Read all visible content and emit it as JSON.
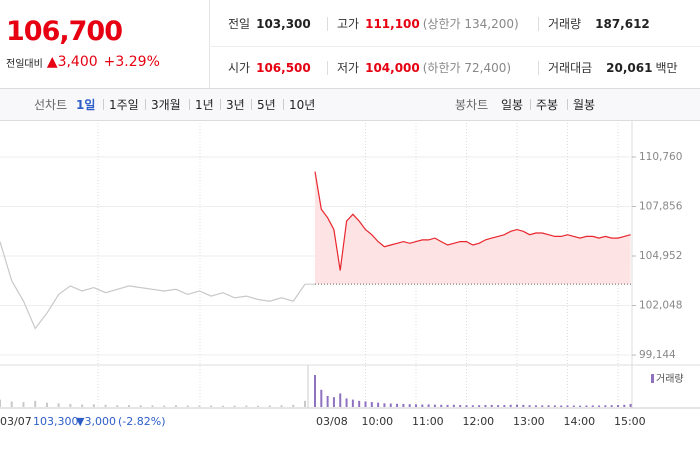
{
  "quote": {
    "price": "106,700",
    "change_label": "전일대비",
    "change": "▲3,400",
    "change_pct": "+3.29%"
  },
  "stats": [
    [
      {
        "label": "전일",
        "value": "103,300"
      },
      {
        "label": "고가",
        "value": "111,100",
        "note": "(상한가 134,200)"
      },
      {
        "label": "거래량",
        "value": "187,612"
      }
    ],
    [
      {
        "label": "시가",
        "value": "106,500"
      },
      {
        "label": "저가",
        "value": "104,000",
        "note": "(하한가 72,400)"
      },
      {
        "label": "거래대금",
        "value": "20,061",
        "unit": "백만"
      }
    ]
  ],
  "tabs": {
    "line_label": "선차트",
    "line_periods": [
      "1일",
      "1주일",
      "3개월",
      "1년",
      "3년",
      "5년",
      "10년"
    ],
    "selected": 0,
    "candle_label": "봉차트",
    "candle_periods": [
      "일봉",
      "주봉",
      "월봉"
    ]
  },
  "footer": {
    "prior_date": "03/07",
    "prior_close": "103,300",
    "prior_change": "▼3,000",
    "prior_pct": "(-2.82%)",
    "date": "03/08"
  },
  "chart_data": [
    {
      "type": "line",
      "ylim": [
        98560,
        112460
      ],
      "yticks": [
        {
          "value": 110760,
          "label": "110,760"
        },
        {
          "value": 107856,
          "label": "107,856"
        },
        {
          "value": 104952,
          "label": "104,952"
        },
        {
          "value": 102048,
          "label": "102,048"
        },
        {
          "value": 99144,
          "label": "99,144"
        }
      ],
      "xlim": [
        9,
        15.5
      ],
      "xticks": [
        {
          "value": 10,
          "label": "10:00"
        },
        {
          "value": 11,
          "label": "11:00"
        },
        {
          "value": 12,
          "label": "12:00"
        },
        {
          "value": 13,
          "label": "13:00"
        },
        {
          "value": 14,
          "label": "14:00"
        },
        {
          "value": 15,
          "label": "15:00"
        }
      ],
      "baseline": 103300,
      "grid": true,
      "series": [
        {
          "color": "#c8c8c8",
          "x": [
            9,
            9.25,
            9.5,
            9.75,
            10,
            10.25,
            10.5,
            10.75,
            11,
            11.25,
            11.5,
            11.75,
            12,
            12.25,
            12.5,
            12.75,
            13,
            13.25,
            13.5,
            13.75,
            14,
            14.25,
            14.5,
            14.75,
            15,
            15.25,
            15.5
          ],
          "values": [
            105800,
            103500,
            102300,
            100700,
            101600,
            102700,
            103200,
            102900,
            103100,
            102800,
            103000,
            103200,
            103100,
            103000,
            102900,
            103000,
            102700,
            102900,
            102600,
            102800,
            102500,
            102600,
            102400,
            102300,
            102500,
            102300,
            103300
          ]
        },
        {
          "color": "#e8262d",
          "fill": "#fde3e3",
          "x": [
            9,
            9.125,
            9.25,
            9.375,
            9.5,
            9.625,
            9.75,
            9.875,
            10,
            10.125,
            10.25,
            10.375,
            10.5,
            10.625,
            10.75,
            10.875,
            11,
            11.125,
            11.25,
            11.375,
            11.5,
            11.625,
            11.75,
            11.875,
            12,
            12.125,
            12.25,
            12.375,
            12.5,
            12.625,
            12.75,
            12.875,
            13,
            13.125,
            13.25,
            13.375,
            13.5,
            13.625,
            13.75,
            13.875,
            14,
            14.125,
            14.25,
            14.375,
            14.5,
            14.625,
            14.75,
            14.875,
            15,
            15.125,
            15.25
          ],
          "values": [
            109900,
            107700,
            107200,
            106500,
            104100,
            107000,
            107400,
            107000,
            106500,
            106200,
            105800,
            105500,
            105600,
            105700,
            105800,
            105700,
            105800,
            105900,
            105900,
            106000,
            105800,
            105600,
            105700,
            105800,
            105800,
            105600,
            105700,
            105900,
            106000,
            106100,
            106200,
            106400,
            106500,
            106400,
            106200,
            106300,
            106300,
            106200,
            106100,
            106100,
            106200,
            106100,
            106000,
            106100,
            106100,
            106000,
            106100,
            106000,
            106000,
            106100,
            106200
          ]
        }
      ]
    },
    {
      "type": "bar",
      "xlim": [
        9,
        15.5
      ],
      "series": [
        {
          "color": "#c8c8c8",
          "x": [
            9,
            9.25,
            9.5,
            9.75,
            10,
            10.25,
            10.5,
            10.75,
            11,
            11.25,
            11.5,
            11.75,
            12,
            12.25,
            12.5,
            12.75,
            13,
            13.25,
            13.5,
            13.75,
            14,
            14.25,
            14.5,
            14.75,
            15,
            15.25,
            15.5
          ],
          "values": [
            6000,
            4500,
            4000,
            5000,
            3500,
            3000,
            2500,
            2000,
            2200,
            1800,
            1500,
            1600,
            1400,
            1300,
            1200,
            1500,
            1300,
            1100,
            1200,
            1000,
            1100,
            1200,
            1000,
            1300,
            1400,
            1800,
            5000
          ]
        },
        {
          "name": "거래량",
          "color": "#8e72c0",
          "x": [
            9,
            9.125,
            9.25,
            9.375,
            9.5,
            9.625,
            9.75,
            9.875,
            10,
            10.125,
            10.25,
            10.375,
            10.5,
            10.625,
            10.75,
            10.875,
            11,
            11.125,
            11.25,
            11.375,
            11.5,
            11.625,
            11.75,
            11.875,
            12,
            12.125,
            12.25,
            12.375,
            12.5,
            12.625,
            12.75,
            12.875,
            13,
            13.125,
            13.25,
            13.375,
            13.5,
            13.625,
            13.75,
            13.875,
            14,
            14.125,
            14.25,
            14.375,
            14.5,
            14.625,
            14.75,
            14.875,
            15,
            15.125,
            15.25
          ],
          "values": [
            26000,
            14000,
            9000,
            8000,
            11000,
            7000,
            6000,
            5000,
            4500,
            4000,
            3500,
            3000,
            2800,
            2600,
            2500,
            2300,
            2200,
            2000,
            2100,
            1900,
            1800,
            1700,
            1800,
            1600,
            1500,
            1400,
            1500,
            1600,
            1700,
            1500,
            1600,
            1800,
            1900,
            1700,
            1500,
            1400,
            1300,
            1400,
            1300,
            1200,
            1300,
            1200,
            1100,
            1200,
            1300,
            1200,
            1400,
            1500,
            1600,
            1800,
            2500
          ]
        }
      ]
    }
  ]
}
